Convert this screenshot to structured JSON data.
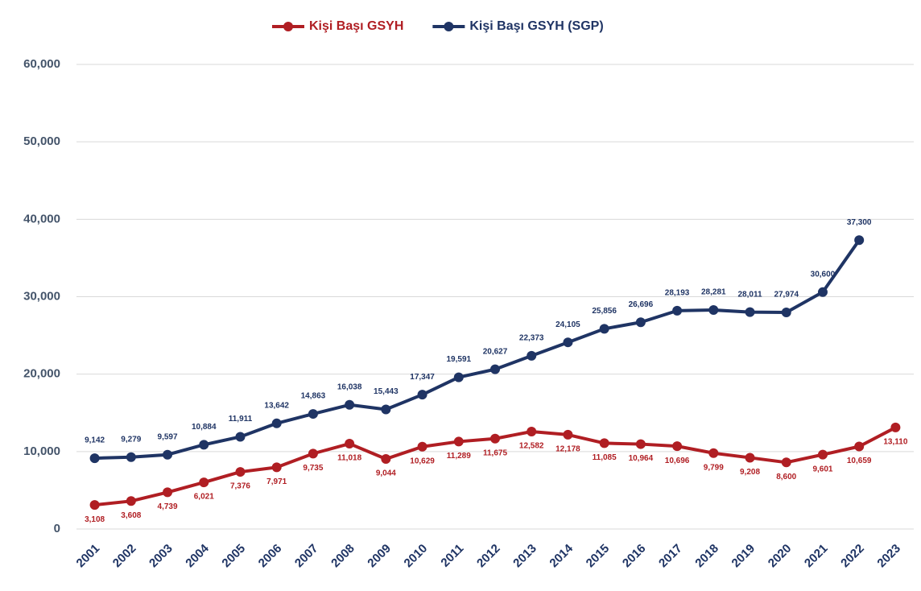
{
  "chart_data": {
    "type": "line",
    "categories": [
      "2001",
      "2002",
      "2003",
      "2004",
      "2005",
      "2006",
      "2007",
      "2008",
      "2009",
      "2010",
      "2011",
      "2012",
      "2013",
      "2014",
      "2015",
      "2016",
      "2017",
      "2018",
      "2019",
      "2020",
      "2021",
      "2022",
      "2023"
    ],
    "series": [
      {
        "name": "Kişi Başı GSYH",
        "color": "#b01e23",
        "values": [
          3108,
          3608,
          4739,
          6021,
          7376,
          7971,
          9735,
          11018,
          9044,
          10629,
          11289,
          11675,
          12582,
          12178,
          11085,
          10964,
          10696,
          9799,
          9208,
          8600,
          9601,
          10659,
          13110
        ],
        "value_labels": [
          "3,108",
          "3,608",
          "4,739",
          "6,021",
          "7,376",
          "7,971",
          "9,735",
          "11,018",
          "9,044",
          "10,629",
          "11,289",
          "11,675",
          "12,582",
          "12,178",
          "11,085",
          "10,964",
          "10,696",
          "9,799",
          "9,208",
          "8,600",
          "9,601",
          "10,659",
          "13,110"
        ]
      },
      {
        "name": "Kişi Başı GSYH (SGP)",
        "color": "#1f3464",
        "values": [
          9142,
          9279,
          9597,
          10884,
          11911,
          13642,
          14863,
          16038,
          15443,
          17347,
          19591,
          20627,
          22373,
          24105,
          25856,
          26696,
          28193,
          28281,
          28011,
          27974,
          30600,
          37300,
          null
        ],
        "value_labels": [
          "9,142",
          "9,279",
          "9,597",
          "10,884",
          "11,911",
          "13,642",
          "14,863",
          "16,038",
          "15,443",
          "17,347",
          "19,591",
          "20,627",
          "22,373",
          "24,105",
          "25,856",
          "26,696",
          "28,193",
          "28,281",
          "28,011",
          "27,974",
          "30,600",
          "37,300",
          null
        ]
      }
    ],
    "ylim": [
      0,
      60000
    ],
    "yticks": [
      0,
      {
        "value": 10000,
        "label": "10,000"
      },
      {
        "value": 20000,
        "label": "20,000"
      },
      {
        "value": 30000,
        "label": "30,000"
      },
      {
        "value": 40000,
        "label": "40,000"
      },
      {
        "value": 50000,
        "label": "50,000"
      },
      {
        "value": 60000,
        "label": "60,000"
      }
    ],
    "grid": true,
    "legend": "top"
  }
}
